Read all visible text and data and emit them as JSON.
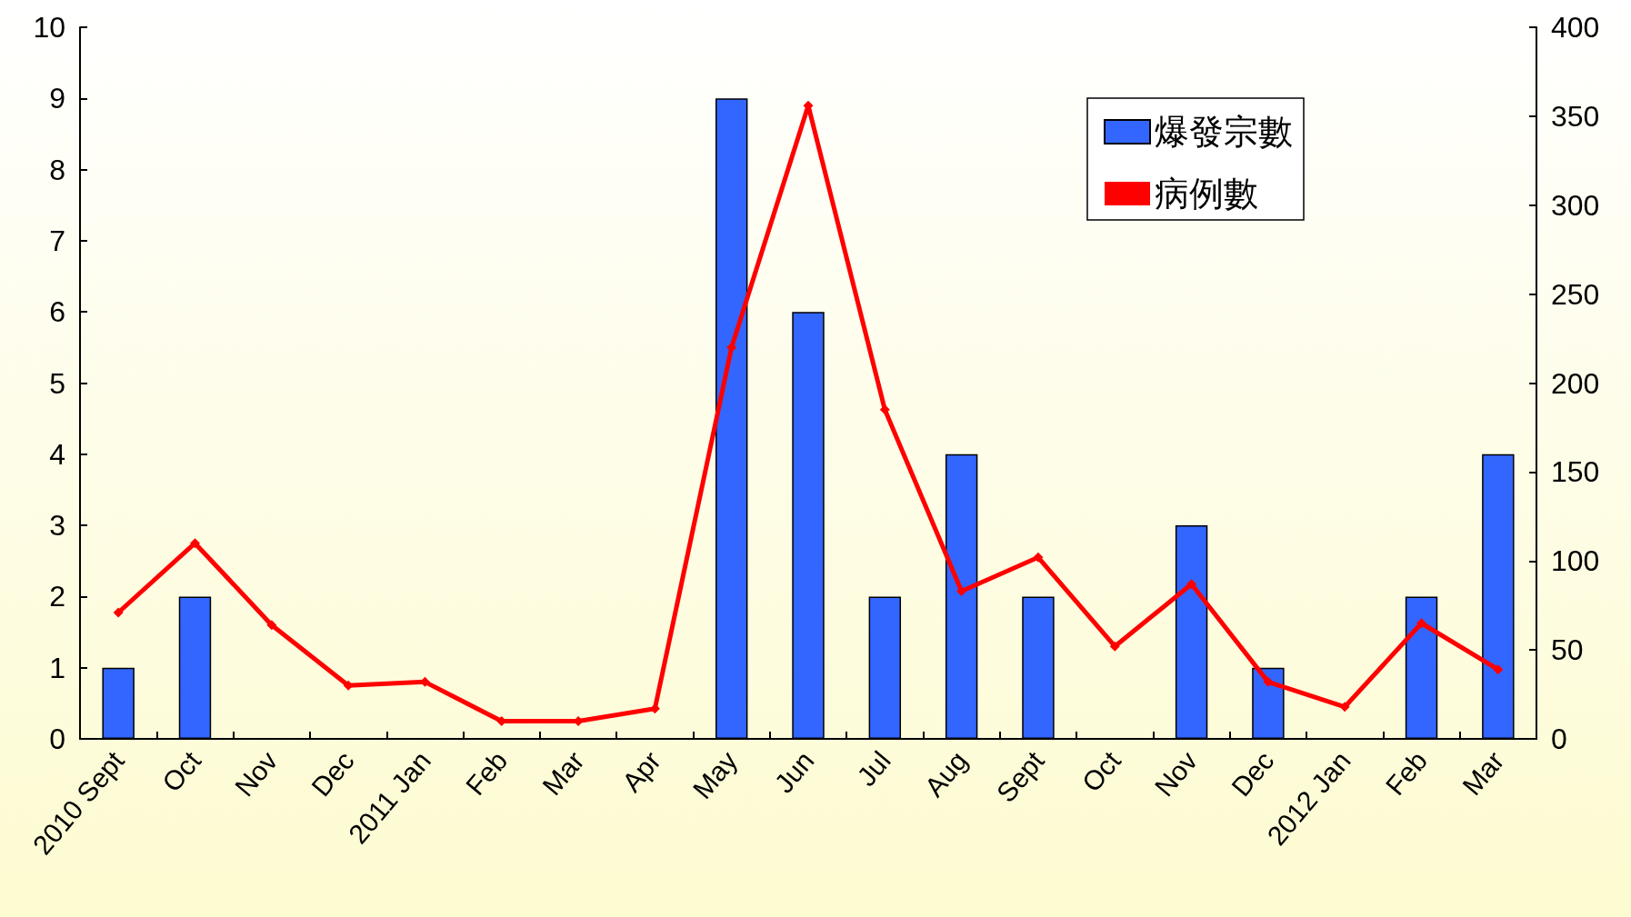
{
  "chart_data": {
    "type": "bar",
    "categories": [
      "2010 Sept",
      "Oct",
      "Nov",
      "Dec",
      "2011 Jan",
      "Feb",
      "Mar",
      "Apr",
      "May",
      "Jun",
      "Jul",
      "Aug",
      "Sept",
      "Oct",
      "Nov",
      "Dec",
      "2012 Jan",
      "Feb",
      "Mar"
    ],
    "series": [
      {
        "name": "爆發宗數",
        "color": "#3366ff",
        "values": [
          1,
          2,
          0,
          0,
          0,
          0,
          0,
          0,
          9,
          6,
          2,
          4,
          2,
          0,
          3,
          1,
          0,
          2,
          4
        ]
      },
      {
        "name": "病例數",
        "type": "line",
        "axis": "y2",
        "color": "#ff0000",
        "marker": "diamond",
        "values": [
          71,
          110,
          64,
          30,
          32,
          10,
          10,
          17,
          220,
          356,
          185,
          83,
          102,
          52,
          87,
          32,
          18,
          65,
          39
        ]
      }
    ],
    "ylim": [
      0,
      10
    ],
    "yticks": [
      0,
      1,
      2,
      3,
      4,
      5,
      6,
      7,
      8,
      9,
      10
    ],
    "y2lim": [
      0,
      400
    ],
    "y2ticks": [
      0,
      50,
      100,
      150,
      200,
      250,
      300,
      350,
      400
    ],
    "grid": false,
    "legend": "top right"
  }
}
